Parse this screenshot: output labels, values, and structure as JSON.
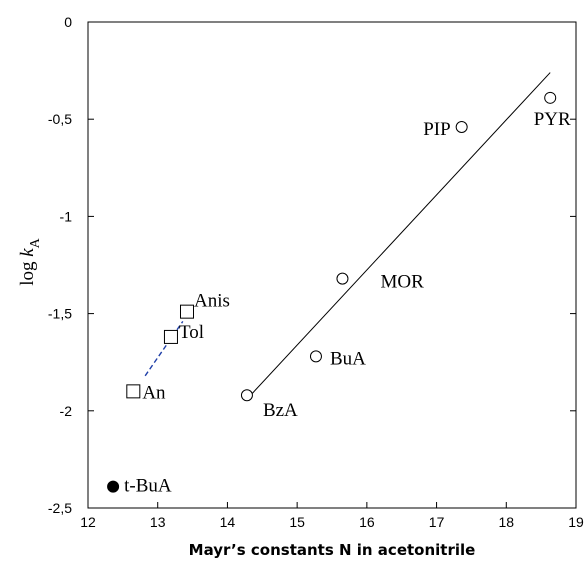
{
  "chart_data": {
    "type": "scatter",
    "xlabel": "Mayr’s constants N in acetonitrile",
    "ylabel": {
      "prefix": "log ",
      "variable": "k",
      "subscript": "A"
    },
    "xlim": [
      12,
      19
    ],
    "ylim": [
      -2.5,
      0
    ],
    "x_ticks": [
      {
        "value": 12,
        "label": "12"
      },
      {
        "value": 13,
        "label": "13"
      },
      {
        "value": 14,
        "label": "14"
      },
      {
        "value": 15,
        "label": "15"
      },
      {
        "value": 16,
        "label": "16"
      },
      {
        "value": 17,
        "label": "17"
      },
      {
        "value": 18,
        "label": "18"
      },
      {
        "value": 19,
        "label": "19"
      }
    ],
    "y_ticks": [
      {
        "value": 0,
        "label": "0"
      },
      {
        "value": -0.5,
        "label": "-0,5"
      },
      {
        "value": -1,
        "label": "-1"
      },
      {
        "value": -1.5,
        "label": "-1,5"
      },
      {
        "value": -2,
        "label": "-2"
      },
      {
        "value": -2.5,
        "label": "-2,5"
      }
    ],
    "grid": false,
    "legend": "none",
    "series": [
      {
        "marker": "square-open",
        "points": [
          {
            "label": "An",
            "x": 12.65,
            "y": -1.9
          },
          {
            "label": "Tol",
            "x": 13.19,
            "y": -1.62
          },
          {
            "label": "Anis",
            "x": 13.42,
            "y": -1.49
          }
        ]
      },
      {
        "marker": "circle-open",
        "points": [
          {
            "label": "BzA",
            "x": 14.28,
            "y": -1.92
          },
          {
            "label": "BuA",
            "x": 15.27,
            "y": -1.72
          },
          {
            "label": "MOR",
            "x": 15.65,
            "y": -1.32
          },
          {
            "label": "PIP",
            "x": 17.36,
            "y": -0.54
          },
          {
            "label": "PYR",
            "x": 18.63,
            "y": -0.39
          }
        ]
      },
      {
        "marker": "circle-filled",
        "points": [
          {
            "label": "t-BuA",
            "x": 12.36,
            "y": -2.39
          }
        ]
      }
    ],
    "fit_lines": [
      {
        "style": "solid",
        "color": "#000000",
        "x": [
          14.28,
          18.63
        ],
        "y": [
          -1.94,
          -0.26
        ]
      },
      {
        "style": "dashed",
        "color": "#1f3fa8",
        "x": [
          12.82,
          13.36
        ],
        "y": [
          -1.82,
          -1.54
        ]
      }
    ]
  }
}
